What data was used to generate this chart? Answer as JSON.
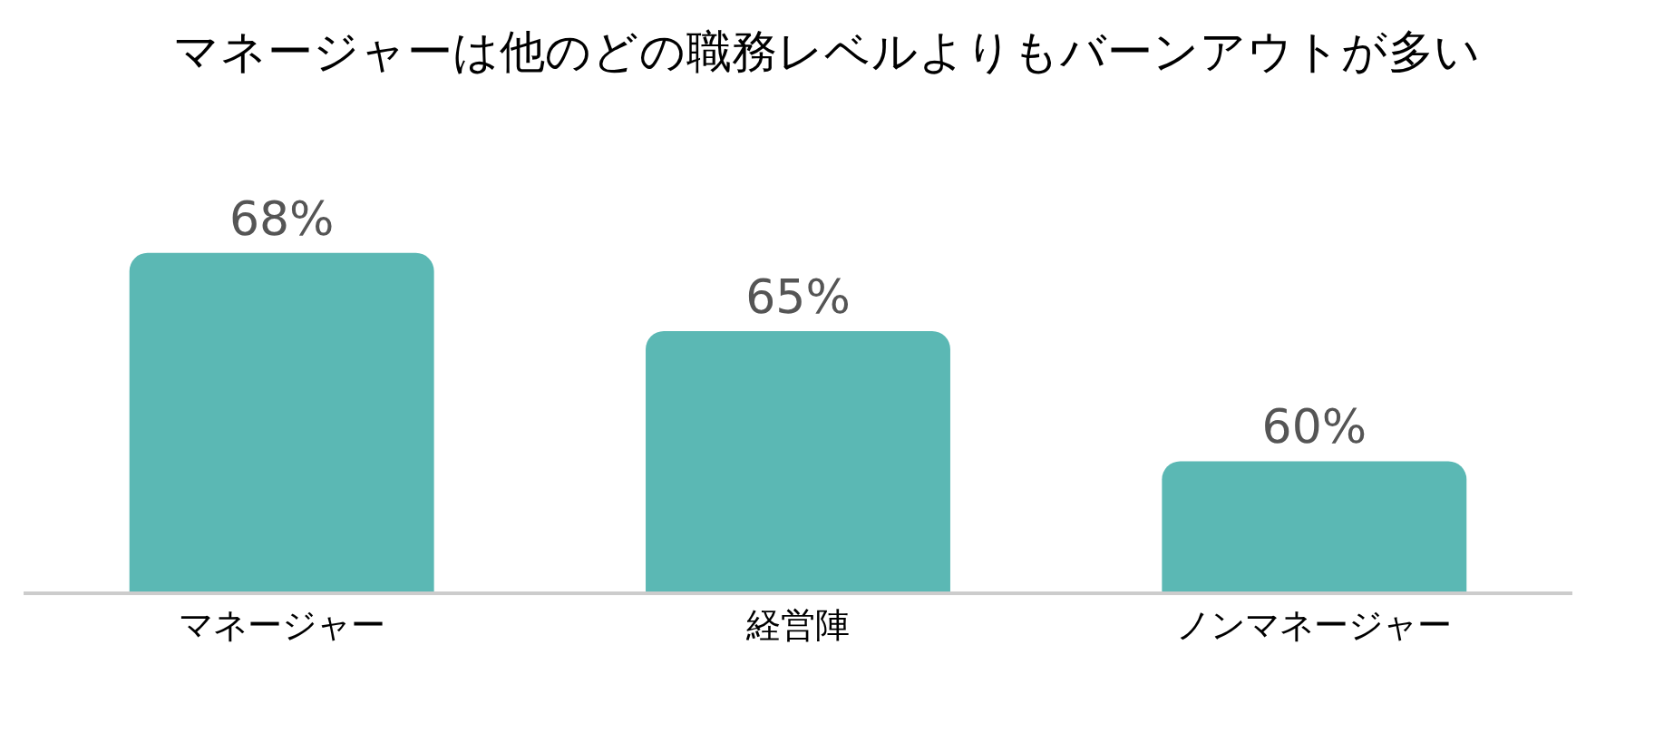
{
  "chart_data": {
    "type": "bar",
    "title": "マネージャーは他のどの職務レベルよりもバーンアウトが多い",
    "categories": [
      "マネージャー",
      "経営陣",
      "ノンマネージャー"
    ],
    "values": [
      68,
      65,
      60
    ],
    "color": "#5bb8b4",
    "value_labels": [
      "68%",
      "65%",
      "60%"
    ],
    "tick_labels": "x",
    "grid": false,
    "legend": false
  }
}
